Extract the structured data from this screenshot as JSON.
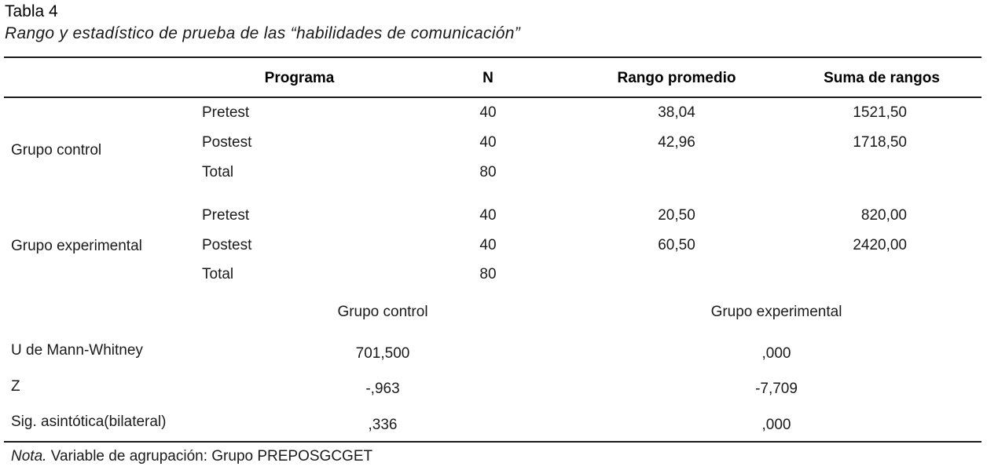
{
  "table": {
    "title": "Tabla 4",
    "subtitle": "Rango y estadístico de prueba de las “habilidades de comunicación”",
    "headers": {
      "programa": "Programa",
      "n": "N",
      "rango": "Rango promedio",
      "suma": "Suma de rangos"
    },
    "groups": [
      {
        "label": "Grupo control",
        "rows": [
          {
            "programa": "Pretest",
            "n": "40",
            "rango": "38,04",
            "suma": "1521,50"
          },
          {
            "programa": "Postest",
            "n": "40",
            "rango": "42,96",
            "suma": "1718,50"
          },
          {
            "programa": "Total",
            "n": "80",
            "rango": "",
            "suma": ""
          }
        ]
      },
      {
        "label": "Grupo experimental",
        "rows": [
          {
            "programa": "Pretest",
            "n": "40",
            "rango": "20,50",
            "suma": "820,00"
          },
          {
            "programa": "Postest",
            "n": "40",
            "rango": "60,50",
            "suma": "2420,00"
          },
          {
            "programa": "Total",
            "n": "80",
            "rango": "",
            "suma": ""
          }
        ]
      }
    ],
    "stats": {
      "col_control": "Grupo control",
      "col_experimental": "Grupo experimental",
      "rows": [
        {
          "label": "U de Mann-Whitney",
          "control": "701,500",
          "experimental": ",000"
        },
        {
          "label": "Z",
          "control": "-,963",
          "experimental": "-7,709"
        },
        {
          "label": "Sig. asintótica(bilateral)",
          "control": ",336",
          "experimental": ",000"
        }
      ]
    },
    "note": {
      "prefix": "Nota.",
      "text": " Variable de agrupación: Grupo PREPOSGCGET"
    }
  }
}
